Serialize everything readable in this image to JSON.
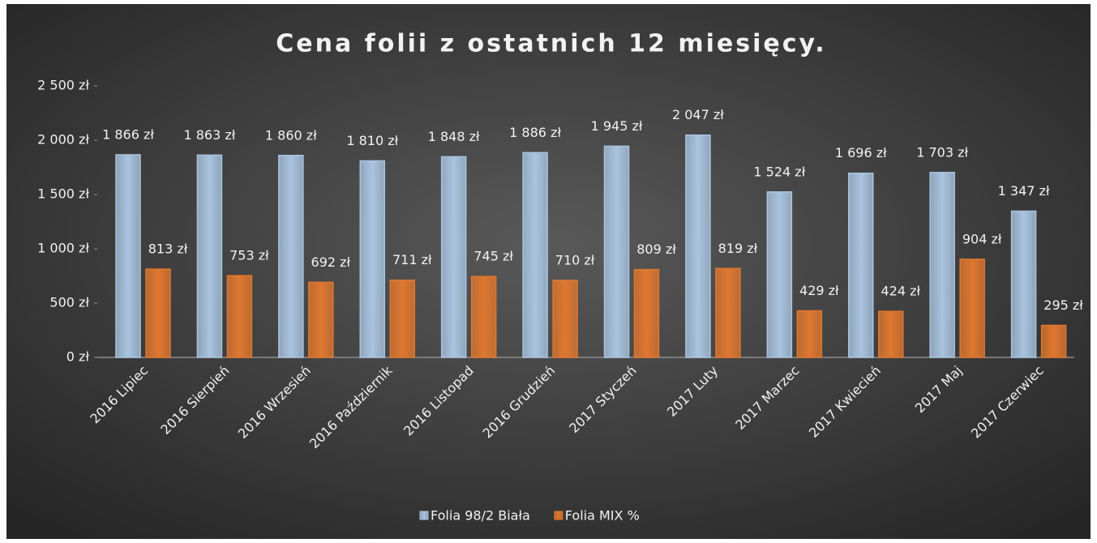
{
  "chart_data": {
    "type": "bar",
    "title": "Cena folii z ostatnich 12 miesięcy.",
    "categories": [
      "2016 Lipiec",
      "2016 Sierpień",
      "2016 Wrzesień",
      "2016 Październik",
      "2016 Listopad",
      "2016 Grudzień",
      "2017 Styczeń",
      "2017 Luty",
      "2017 Marzec",
      "2017 Kwiecień",
      "2017 Maj",
      "2017 Czerwiec"
    ],
    "series": [
      {
        "name": "Folia 98/2 Biała",
        "color": "#a9c4e0",
        "values": [
          1866,
          1863,
          1860,
          1810,
          1848,
          1886,
          1945,
          2047,
          1524,
          1696,
          1703,
          1347
        ],
        "value_labels": [
          "1 866 zł",
          "1 863 zł",
          "1 860 zł",
          "1 810 zł",
          "1 848 zł",
          "1 886 zł",
          "1 945 zł",
          "2 047 zł",
          "1 524 zł",
          "1 696 zł",
          "1 703 zł",
          "1 347 zł"
        ]
      },
      {
        "name": "Folia MIX %",
        "color": "#e0772f",
        "values": [
          813,
          753,
          692,
          711,
          745,
          710,
          809,
          819,
          429,
          424,
          904,
          295
        ],
        "value_labels": [
          "813 zł",
          "753 zł",
          "692 zł",
          "711 zł",
          "745 zł",
          "710 zł",
          "809 zł",
          "819 zł",
          "429 zł",
          "424 zł",
          "904 zł",
          "295 zł"
        ]
      }
    ],
    "ylim": [
      0,
      2500
    ],
    "yticks": [
      {
        "value": 0,
        "label": "0 zł"
      },
      {
        "value": 500,
        "label": "500 zł"
      },
      {
        "value": 1000,
        "label": "1 000 zł"
      },
      {
        "value": 1500,
        "label": "1 500 zł"
      },
      {
        "value": 2000,
        "label": "2 000 zł"
      },
      {
        "value": 2500,
        "label": "2 500 zł"
      }
    ],
    "legend": "bottom"
  }
}
